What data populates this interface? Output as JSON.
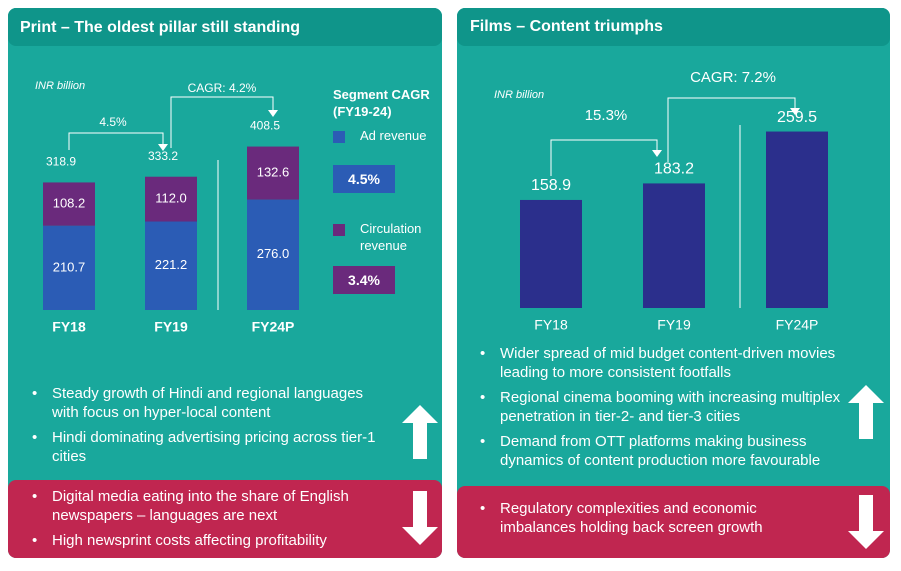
{
  "chart_data": [
    {
      "type": "stacked-bar",
      "title": "Print – The oldest pillar still standing",
      "unit": "INR billion",
      "categories": [
        "FY18",
        "FY19",
        "FY24P"
      ],
      "series": [
        {
          "name": "Ad revenue",
          "color": "#2b5cb5",
          "values": [
            210.7,
            221.2,
            276.0
          ],
          "value_labels": [
            "210.7",
            "221.2",
            "276.0"
          ],
          "cagr": "4.5%"
        },
        {
          "name": "Circulation revenue",
          "color": "#6a2a7c",
          "values": [
            108.2,
            112.0,
            132.6
          ],
          "value_labels": [
            "108.2",
            "112.0",
            "132.6"
          ],
          "cagr": "3.4%"
        }
      ],
      "totals": [
        318.9,
        333.2,
        408.5
      ],
      "legend_title": "Segment CAGR (FY19-24)",
      "growth_short": "4.5%",
      "growth_long": "CAGR: 4.2%",
      "positives": [
        "Steady growth of Hindi and regional languages with focus on hyper-local content",
        "Hindi dominating advertising pricing across tier-1 cities"
      ],
      "negatives": [
        "Digital media eating into the share of English newspapers – languages are next",
        "High newsprint costs affecting profitability"
      ]
    },
    {
      "type": "bar",
      "title": "Films – Content triumphs",
      "unit": "INR billion",
      "categories": [
        "FY18",
        "FY19",
        "FY24P"
      ],
      "values": [
        158.9,
        183.2,
        259.5
      ],
      "color": "#2b2f8c",
      "growth_short": "15.3%",
      "growth_long": "CAGR: 7.2%",
      "positives": [
        "Wider spread of mid budget content-driven movies leading to more consistent footfalls",
        "Regional cinema booming with increasing multiplex penetration in tier-2- and tier-3 cities",
        "Demand from OTT platforms making business dynamics of content production more favourable"
      ],
      "negatives": [
        "Regulatory complexities and economic imbalances holding back screen growth"
      ]
    }
  ]
}
